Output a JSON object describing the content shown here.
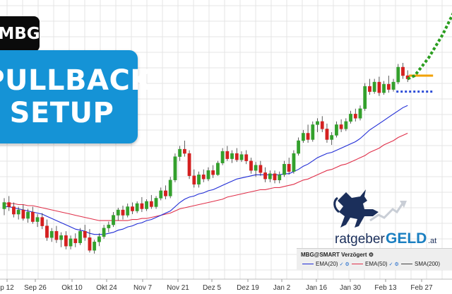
{
  "badge": {
    "ticker": "MBG"
  },
  "setup": {
    "line1": "PULLBACK",
    "line2": "SETUP"
  },
  "logo": {
    "text_light": "ratgeber",
    "text_bold": "GELD",
    "text_suffix": ".at"
  },
  "legend": {
    "title": "MBG@SMART Verzögert",
    "items": [
      {
        "label": "EMA(20)",
        "color": "#1f2bd6"
      },
      {
        "label": "EMA(50)",
        "color": "#e0304a"
      },
      {
        "label": "SMA(200)",
        "color": "#444444"
      }
    ]
  },
  "colors": {
    "up": "#33a02c",
    "down": "#d42020",
    "grid": "#e4e4e4",
    "projection": "#2a9d1f",
    "resistance": "#f2a100",
    "support": "#2a4bd7",
    "logo_navy": "#1b2f5b",
    "logo_blue": "#1a7fc1"
  },
  "chart_data": {
    "type": "candlestick",
    "x_ticks": [
      "p 12",
      "Sep 26",
      "Okt 10",
      "Okt 24",
      "Nov 7",
      "Nov 21",
      "Dez 5",
      "Dez 19",
      "Jan 2",
      "Jan 16",
      "Jan 30",
      "Feb 13",
      "Feb 27"
    ],
    "ylim": [
      52,
      78
    ],
    "candles": [
      [
        58.4,
        59.4,
        57.8,
        59.0
      ],
      [
        59.0,
        59.6,
        58.2,
        58.6
      ],
      [
        58.6,
        59.0,
        57.6,
        57.9
      ],
      [
        57.9,
        58.6,
        57.4,
        58.3
      ],
      [
        58.3,
        58.8,
        57.3,
        57.5
      ],
      [
        57.5,
        58.4,
        57.1,
        58.1
      ],
      [
        58.1,
        58.6,
        57.0,
        57.2
      ],
      [
        57.2,
        57.9,
        56.7,
        57.6
      ],
      [
        57.6,
        58.0,
        56.5,
        56.8
      ],
      [
        56.8,
        57.4,
        55.4,
        55.7
      ],
      [
        55.7,
        56.6,
        55.3,
        56.3
      ],
      [
        56.3,
        56.8,
        55.2,
        55.5
      ],
      [
        55.5,
        56.2,
        54.8,
        55.9
      ],
      [
        55.9,
        56.3,
        54.6,
        54.9
      ],
      [
        54.9,
        55.9,
        54.6,
        55.6
      ],
      [
        55.6,
        56.1,
        54.8,
        55.2
      ],
      [
        55.2,
        56.6,
        55.0,
        56.3
      ],
      [
        56.3,
        56.9,
        55.4,
        55.7
      ],
      [
        55.7,
        56.5,
        54.3,
        54.5
      ],
      [
        54.5,
        55.5,
        54.2,
        55.3
      ],
      [
        55.3,
        56.1,
        54.9,
        55.8
      ],
      [
        55.8,
        56.9,
        55.6,
        56.6
      ],
      [
        56.6,
        57.2,
        56.2,
        56.9
      ],
      [
        56.9,
        58.1,
        56.7,
        57.8
      ],
      [
        57.8,
        58.5,
        57.3,
        58.3
      ],
      [
        58.3,
        58.7,
        57.4,
        57.8
      ],
      [
        57.8,
        58.9,
        57.6,
        58.6
      ],
      [
        58.6,
        59.0,
        57.9,
        58.2
      ],
      [
        58.2,
        59.1,
        58.0,
        58.9
      ],
      [
        58.9,
        59.5,
        58.1,
        58.4
      ],
      [
        58.4,
        59.3,
        58.2,
        59.1
      ],
      [
        59.1,
        59.7,
        58.4,
        58.6
      ],
      [
        58.6,
        59.6,
        58.4,
        59.4
      ],
      [
        59.4,
        60.4,
        59.2,
        60.1
      ],
      [
        60.1,
        60.6,
        59.3,
        59.6
      ],
      [
        59.6,
        61.4,
        59.4,
        61.1
      ],
      [
        61.1,
        63.6,
        60.9,
        63.3
      ],
      [
        63.3,
        64.3,
        62.9,
        64.0
      ],
      [
        64.0,
        64.8,
        63.3,
        63.6
      ],
      [
        63.6,
        63.9,
        61.2,
        61.5
      ],
      [
        61.5,
        62.1,
        60.4,
        60.7
      ],
      [
        60.7,
        61.9,
        60.4,
        61.6
      ],
      [
        61.6,
        62.1,
        60.9,
        61.2
      ],
      [
        61.2,
        62.3,
        61.0,
        62.0
      ],
      [
        62.0,
        62.5,
        61.3,
        61.6
      ],
      [
        61.6,
        62.9,
        61.5,
        62.7
      ],
      [
        62.7,
        64.1,
        62.5,
        63.8
      ],
      [
        63.8,
        64.3,
        62.9,
        63.1
      ],
      [
        63.1,
        63.9,
        62.7,
        63.6
      ],
      [
        63.6,
        64.1,
        62.8,
        63.0
      ],
      [
        63.0,
        63.8,
        62.8,
        63.5
      ],
      [
        63.5,
        63.9,
        62.6,
        62.9
      ],
      [
        62.9,
        63.2,
        61.7,
        62.0
      ],
      [
        62.0,
        62.8,
        61.4,
        62.5
      ],
      [
        62.5,
        62.9,
        61.5,
        61.8
      ],
      [
        61.8,
        62.3,
        60.9,
        61.2
      ],
      [
        61.2,
        62.0,
        60.9,
        61.7
      ],
      [
        61.7,
        62.0,
        60.8,
        61.1
      ],
      [
        61.1,
        61.9,
        60.8,
        61.6
      ],
      [
        61.6,
        62.9,
        61.4,
        62.6
      ],
      [
        62.6,
        63.2,
        61.6,
        61.9
      ],
      [
        61.9,
        63.9,
        61.7,
        63.6
      ],
      [
        63.6,
        65.1,
        63.4,
        64.8
      ],
      [
        64.8,
        65.8,
        64.6,
        65.5
      ],
      [
        65.5,
        66.3,
        64.6,
        64.9
      ],
      [
        64.9,
        66.6,
        64.7,
        66.3
      ],
      [
        66.3,
        66.9,
        65.6,
        66.6
      ],
      [
        66.6,
        67.1,
        65.6,
        65.9
      ],
      [
        65.9,
        66.4,
        64.6,
        64.9
      ],
      [
        64.9,
        65.6,
        64.4,
        65.3
      ],
      [
        65.3,
        66.6,
        65.1,
        66.3
      ],
      [
        66.3,
        66.8,
        65.6,
        65.9
      ],
      [
        65.9,
        66.9,
        65.7,
        66.6
      ],
      [
        66.6,
        67.6,
        66.4,
        67.3
      ],
      [
        67.3,
        67.8,
        66.6,
        66.9
      ],
      [
        66.9,
        68.1,
        66.7,
        67.8
      ],
      [
        67.8,
        70.2,
        67.6,
        69.9
      ],
      [
        69.9,
        70.6,
        69.1,
        69.4
      ],
      [
        69.4,
        70.6,
        69.2,
        70.3
      ],
      [
        70.3,
        70.8,
        69.0,
        69.3
      ],
      [
        69.3,
        70.4,
        69.1,
        70.1
      ],
      [
        70.1,
        70.9,
        69.3,
        69.6
      ],
      [
        69.6,
        70.6,
        69.4,
        70.3
      ],
      [
        70.3,
        72.0,
        70.1,
        71.7
      ],
      [
        71.7,
        72.1,
        70.6,
        70.9
      ],
      [
        70.9,
        71.4,
        70.3,
        70.6
      ]
    ],
    "ema20": [
      58.6,
      58.6,
      58.5,
      58.4,
      58.3,
      58.2,
      58.1,
      58.0,
      57.9,
      57.7,
      57.5,
      57.3,
      57.1,
      56.9,
      56.7,
      56.5,
      56.4,
      56.3,
      56.1,
      56.0,
      56.0,
      56.0,
      56.1,
      56.2,
      56.4,
      56.5,
      56.7,
      56.8,
      57.0,
      57.1,
      57.3,
      57.4,
      57.6,
      57.8,
      58.0,
      58.2,
      58.6,
      59.0,
      59.3,
      59.5,
      59.6,
      59.8,
      59.9,
      60.1,
      60.2,
      60.4,
      60.6,
      60.8,
      61.0,
      61.2,
      61.3,
      61.4,
      61.5,
      61.6,
      61.6,
      61.6,
      61.6,
      61.6,
      61.6,
      61.7,
      61.7,
      61.9,
      62.1,
      62.4,
      62.6,
      62.9,
      63.2,
      63.4,
      63.6,
      63.7,
      63.9,
      64.1,
      64.3,
      64.5,
      64.7,
      65.0,
      65.4,
      65.8,
      66.1,
      66.4,
      66.7,
      67.0,
      67.3,
      67.6,
      67.9,
      68.1
    ],
    "ema50": [
      58.9,
      58.9,
      58.9,
      58.8,
      58.8,
      58.7,
      58.7,
      58.6,
      58.5,
      58.4,
      58.3,
      58.2,
      58.1,
      58.0,
      57.9,
      57.8,
      57.7,
      57.6,
      57.5,
      57.4,
      57.3,
      57.3,
      57.3,
      57.3,
      57.3,
      57.3,
      57.3,
      57.4,
      57.4,
      57.5,
      57.5,
      57.6,
      57.7,
      57.8,
      57.9,
      58.0,
      58.2,
      58.4,
      58.5,
      58.6,
      58.7,
      58.8,
      58.9,
      59.0,
      59.1,
      59.2,
      59.3,
      59.5,
      59.6,
      59.7,
      59.8,
      59.9,
      60.0,
      60.1,
      60.2,
      60.2,
      60.3,
      60.4,
      60.4,
      60.5,
      60.6,
      60.7,
      60.9,
      61.1,
      61.2,
      61.4,
      61.6,
      61.8,
      62.0,
      62.1,
      62.3,
      62.5,
      62.6,
      62.8,
      63.0,
      63.2,
      63.4,
      63.7,
      63.9,
      64.1,
      64.4,
      64.6,
      64.8,
      65.1,
      65.3,
      65.5
    ],
    "projection": [
      [
        71.2,
        70.9
      ],
      [
        73.5,
        72.6
      ],
      [
        76.2,
        74.8
      ],
      [
        79.0,
        77.5
      ]
    ],
    "resistance_level": 70.9,
    "support_level": 69.4
  }
}
